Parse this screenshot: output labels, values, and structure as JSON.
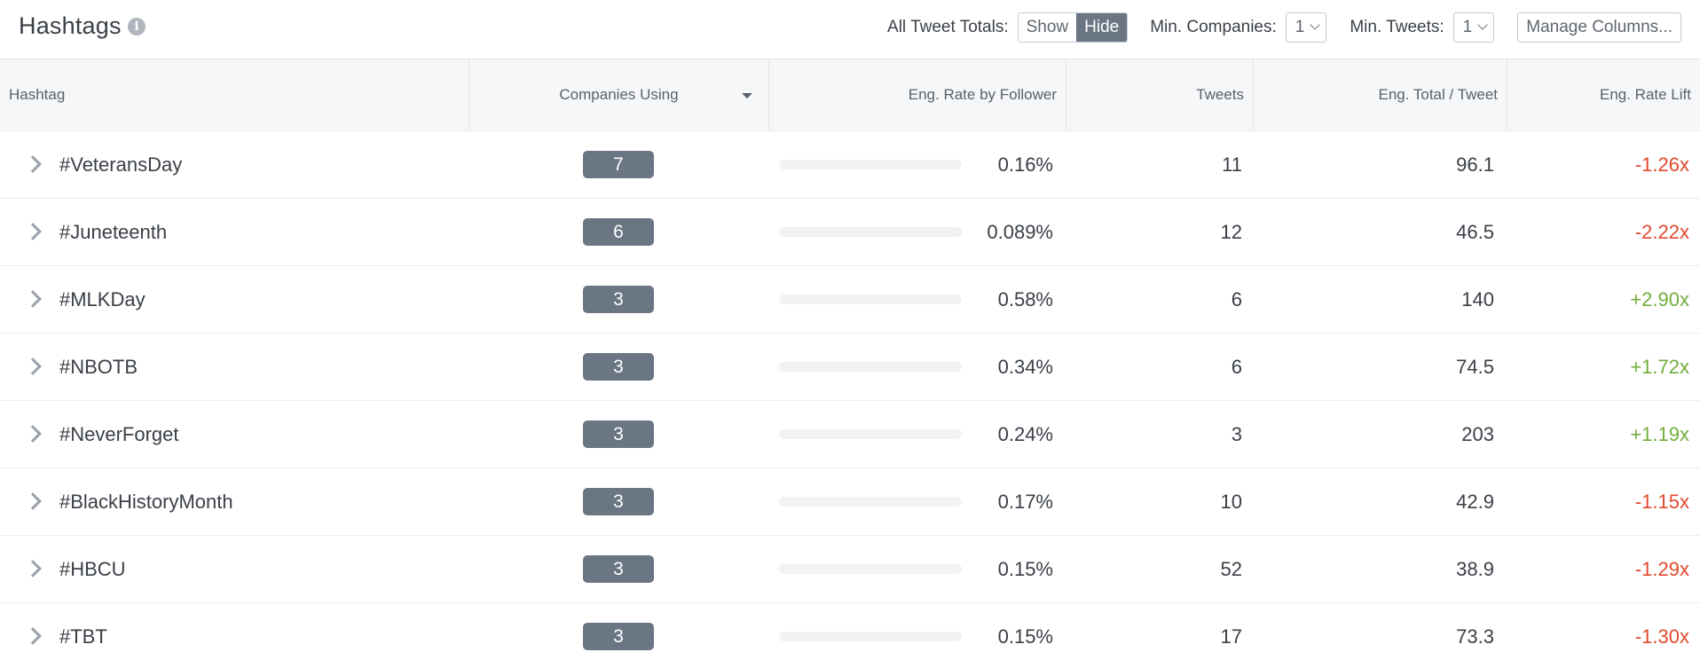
{
  "header": {
    "title": "Hashtags",
    "info_glyph": "i",
    "all_tweet_totals_label": "All Tweet Totals:",
    "toggle_show": "Show",
    "toggle_hide": "Hide",
    "toggle_selected": "Hide",
    "min_companies_label": "Min. Companies:",
    "min_companies_value": "1",
    "min_tweets_label": "Min. Tweets:",
    "min_tweets_value": "1",
    "manage_columns": "Manage Columns..."
  },
  "columns": {
    "hashtag": "Hashtag",
    "companies": "Companies Using",
    "eng_rate": "Eng. Rate by Follower",
    "tweets": "Tweets",
    "eng_total": "Eng. Total / Tweet",
    "lift": "Eng. Rate Lift"
  },
  "colors": {
    "badge": "#6b7685",
    "negative": "#e2492d",
    "positive": "#72ad3c"
  },
  "rows": [
    {
      "hashtag": "#VeteransDay",
      "companies": "7",
      "eng_rate": "0.16%",
      "bar_fraction": 0,
      "tweets": "11",
      "eng_total": "96.1",
      "lift": "-1.26x",
      "lift_sign": "neg"
    },
    {
      "hashtag": "#Juneteenth",
      "companies": "6",
      "eng_rate": "0.089%",
      "bar_fraction": 0,
      "tweets": "12",
      "eng_total": "46.5",
      "lift": "-2.22x",
      "lift_sign": "neg"
    },
    {
      "hashtag": "#MLKDay",
      "companies": "3",
      "eng_rate": "0.58%",
      "bar_fraction": 0.01,
      "tweets": "6",
      "eng_total": "140",
      "lift": "+2.90x",
      "lift_sign": "pos"
    },
    {
      "hashtag": "#NBOTB",
      "companies": "3",
      "eng_rate": "0.34%",
      "bar_fraction": 0.01,
      "tweets": "6",
      "eng_total": "74.5",
      "lift": "+1.72x",
      "lift_sign": "pos"
    },
    {
      "hashtag": "#NeverForget",
      "companies": "3",
      "eng_rate": "0.24%",
      "bar_fraction": 0.01,
      "tweets": "3",
      "eng_total": "203",
      "lift": "+1.19x",
      "lift_sign": "pos"
    },
    {
      "hashtag": "#BlackHistoryMonth",
      "companies": "3",
      "eng_rate": "0.17%",
      "bar_fraction": 0,
      "tweets": "10",
      "eng_total": "42.9",
      "lift": "-1.15x",
      "lift_sign": "neg"
    },
    {
      "hashtag": "#HBCU",
      "companies": "3",
      "eng_rate": "0.15%",
      "bar_fraction": 0,
      "tweets": "52",
      "eng_total": "38.9",
      "lift": "-1.29x",
      "lift_sign": "neg"
    },
    {
      "hashtag": "#TBT",
      "companies": "3",
      "eng_rate": "0.15%",
      "bar_fraction": 0,
      "tweets": "17",
      "eng_total": "73.3",
      "lift": "-1.30x",
      "lift_sign": "neg"
    }
  ]
}
